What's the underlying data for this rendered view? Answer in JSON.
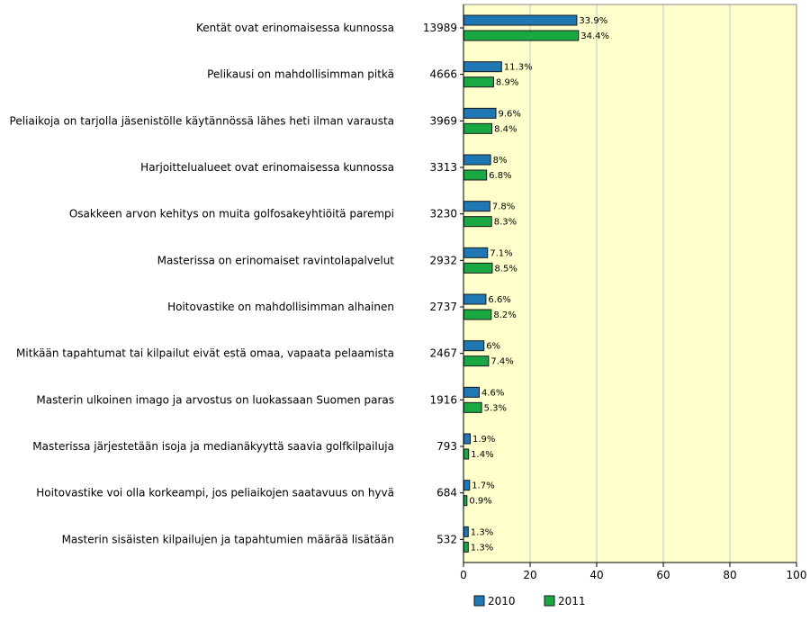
{
  "chart_data": {
    "type": "bar",
    "orientation": "horizontal",
    "categories": [
      "Kentät ovat erinomaisessa kunnossa",
      "Pelikausi on mahdollisimman pitkä",
      "Peliaikoja on tarjolla jäsenistölle käytännössä lähes heti ilman varausta",
      "Harjoittelualueet ovat erinomaisessa kunnossa",
      "Osakkeen arvon kehitys on muita golfosakeyhtiöitä parempi",
      "Masterissa on erinomaiset ravintolapalvelut",
      "Hoitovastike on mahdollisimman alhainen",
      "Mitkään tapahtumat tai kilpailut eivät estä omaa, vapaata pelaamista",
      "Masterin ulkoinen imago ja arvostus on luokassaan Suomen paras",
      "Masterissa järjestetään isoja ja medianäkyyttä saavia golfkilpailuja",
      "Hoitovastike voi olla korkeampi, jos peliaikojen saatavuus on hyvä",
      "Masterin sisäisten kilpailujen ja tapahtumien määrää lisätään"
    ],
    "counts": [
      "13989",
      "4666",
      "3969",
      "3313",
      "3230",
      "2932",
      "2737",
      "2467",
      "1916",
      "793",
      "684",
      "532"
    ],
    "series": [
      {
        "name": "2010",
        "color": "#1f77b4",
        "values": [
          33.9,
          11.3,
          9.6,
          8,
          7.8,
          7.1,
          6.6,
          6,
          4.6,
          1.9,
          1.7,
          1.3
        ],
        "labels": [
          "33.9%",
          "11.3%",
          "9.6%",
          "8%",
          "7.8%",
          "7.1%",
          "6.6%",
          "6%",
          "4.6%",
          "1.9%",
          "1.7%",
          "1.3%"
        ]
      },
      {
        "name": "2011",
        "color": "#1aa843",
        "values": [
          34.4,
          8.9,
          8.4,
          6.8,
          8.3,
          8.5,
          8.2,
          7.4,
          5.3,
          1.4,
          0.9,
          1.3
        ],
        "labels": [
          "34.4%",
          "8.9%",
          "8.4%",
          "6.8%",
          "8.3%",
          "8.5%",
          "8.2%",
          "7.4%",
          "5.3%",
          "1.4%",
          "0.9%",
          "1.3%"
        ]
      }
    ],
    "xlim": [
      0,
      100
    ],
    "xticks": [
      "0",
      "20",
      "40",
      "60",
      "80",
      "100"
    ],
    "grid": "vertical",
    "plot_background": "#ffffcc",
    "legend": "bottom"
  }
}
